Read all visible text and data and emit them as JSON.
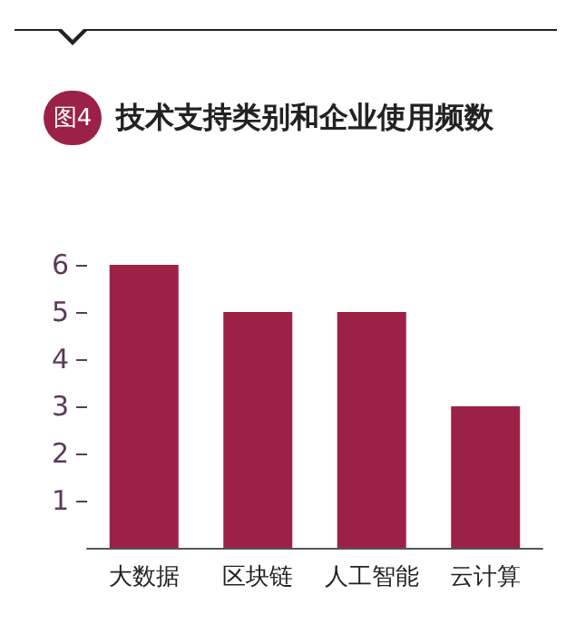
{
  "chart_data": {
    "type": "bar",
    "title": "技术支持类别和企业使用频数",
    "annotations": [
      "图4"
    ],
    "categories": [
      "大数据",
      "区块链",
      "人工智能",
      "云计算"
    ],
    "values": [
      6,
      5,
      5,
      3
    ],
    "color": "#9c2146",
    "ylim": [
      0,
      6
    ],
    "yticks": [
      1,
      2,
      3,
      4,
      5,
      6
    ],
    "grid": false
  }
}
